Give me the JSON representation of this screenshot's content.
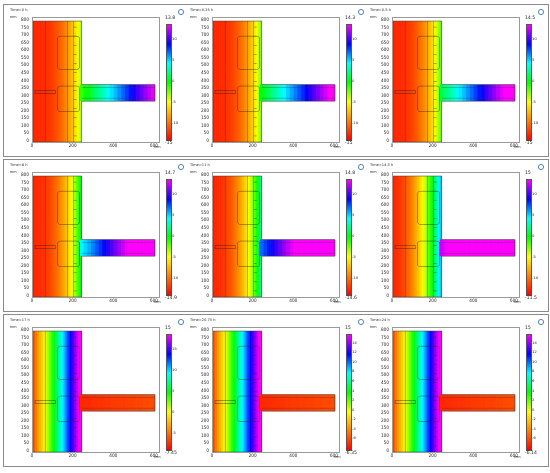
{
  "rows": [
    [
      "0",
      "1",
      "2"
    ],
    [
      "3",
      "4",
      "5"
    ],
    [
      "6",
      "7",
      "8"
    ]
  ],
  "panels": [
    {
      "time": "Time=0 h",
      "max": "13.8",
      "min": "-15",
      "cb_ticks": [
        "10",
        "5",
        "0",
        "-5",
        "-10"
      ],
      "colormap": "rainbow",
      "stage": 0.0
    },
    {
      "time": "Time=0.25 h",
      "max": "14.3",
      "min": "-15",
      "cb_ticks": [
        "10",
        "5",
        "0",
        "-5",
        "-10"
      ],
      "colormap": "rainbow",
      "stage": 0.04
    },
    {
      "time": "Time=0.5 h",
      "max": "14.5",
      "min": "-15",
      "cb_ticks": [
        "10",
        "5",
        "0",
        "-5",
        "-10"
      ],
      "colormap": "rainbow",
      "stage": 0.08
    },
    {
      "time": "Time=8 h",
      "max": "14.7",
      "min": "-14.9",
      "cb_ticks": [
        "10",
        "5",
        "0",
        "-5",
        "-10"
      ],
      "colormap": "rainbow",
      "stage": 0.2
    },
    {
      "time": "Time=11 h",
      "max": "14.8",
      "min": "-14.6",
      "cb_ticks": [
        "10",
        "5",
        "0",
        "-5",
        "-10"
      ],
      "colormap": "rainbow",
      "stage": 0.3
    },
    {
      "time": "Time=14.5 h",
      "max": "15",
      "min": "-11.5",
      "cb_ticks": [
        "10",
        "5",
        "0",
        "-5",
        "-10"
      ],
      "colormap": "rainbow",
      "stage": 0.5
    },
    {
      "time": "Time=17 h",
      "max": "15",
      "min": "-7.45",
      "cb_ticks": [
        "15",
        "10",
        "5",
        "0",
        "-5"
      ],
      "colormap": "rainbow",
      "stage": 0.75
    },
    {
      "time": "Time=20.75 h",
      "max": "15",
      "min": "-6.35",
      "cb_ticks": [
        "14",
        "12",
        "10",
        "8",
        "6",
        "4",
        "2",
        "0",
        "-2",
        "-4",
        "-6"
      ],
      "colormap": "rainbow",
      "stage": 0.85
    },
    {
      "time": "Time=24 h",
      "max": "15",
      "min": "-6.14",
      "cb_ticks": [
        "14",
        "12",
        "10",
        "8",
        "6",
        "4",
        "2",
        "0",
        "-2",
        "-4",
        "-6"
      ],
      "colormap": "rainbow",
      "stage": 1.0
    }
  ],
  "axes": {
    "unit": "mm",
    "y_ticks": [
      "800",
      "750",
      "700",
      "650",
      "600",
      "550",
      "500",
      "450",
      "400",
      "350",
      "300",
      "250",
      "200",
      "150",
      "100",
      "50",
      "0"
    ],
    "x_ticks": [
      "0",
      "200",
      "400",
      "600"
    ]
  },
  "colors": {
    "ramp": [
      "#ff0000",
      "#ff8000",
      "#ffff00",
      "#00ff00",
      "#00ffff",
      "#0000ff",
      "#ff00ff"
    ]
  }
}
